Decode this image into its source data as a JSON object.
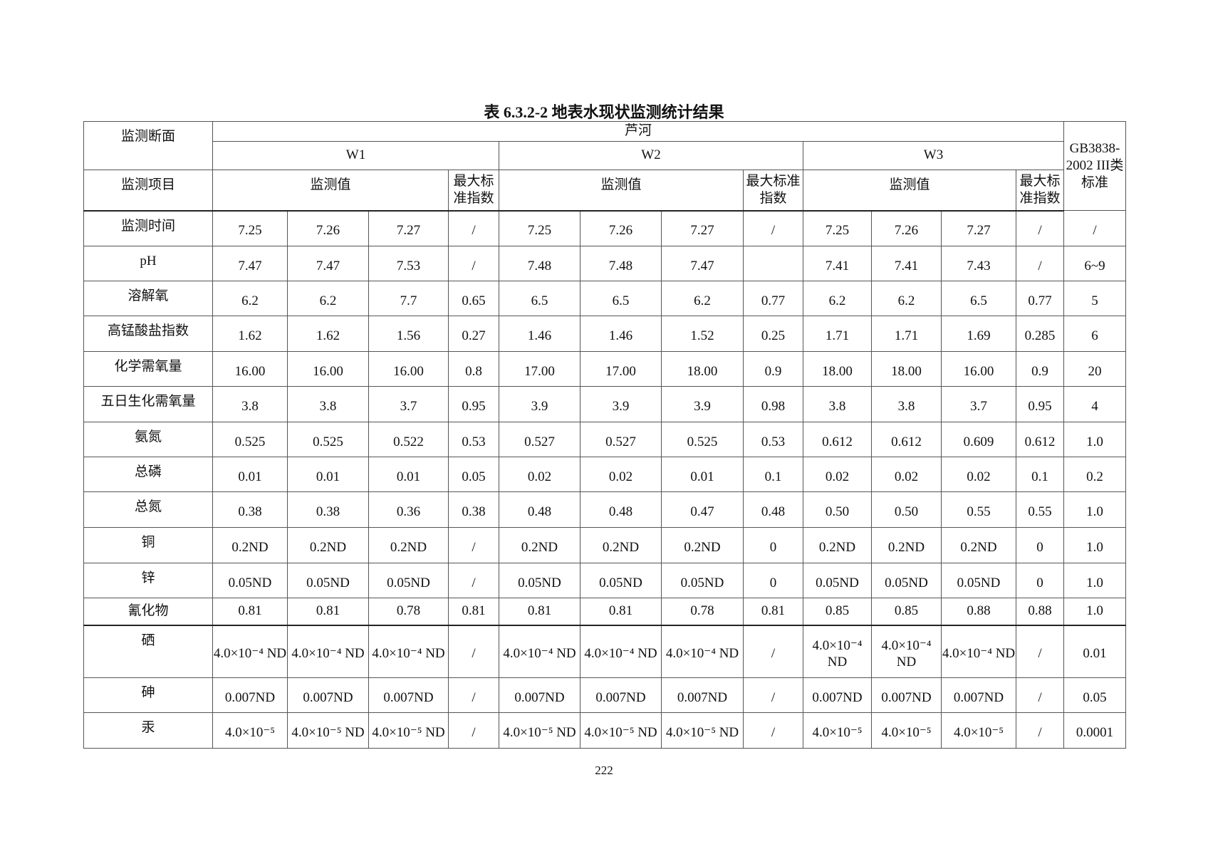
{
  "title": "表 6.3.2-2    地表水现状监测统计结果",
  "header": {
    "section_label": "监测断面",
    "river": "芦河",
    "sites": [
      "W1",
      "W2",
      "W3"
    ],
    "item_label": "监测项目",
    "value_label": "监测值",
    "max_index_label": "最大标准指数",
    "standard_label": "GB3838-2002 III类标准"
  },
  "rows": [
    {
      "item": "监测时间",
      "values": [
        "7.25",
        "7.26",
        "7.27",
        "/",
        "7.25",
        "7.26",
        "7.27",
        "/",
        "7.25",
        "7.26",
        "7.27",
        "/",
        "/"
      ]
    },
    {
      "item": "pH",
      "values": [
        "7.47",
        "7.47",
        "7.53",
        "/",
        "7.48",
        "7.48",
        "7.47",
        "",
        "7.41",
        "7.41",
        "7.43",
        "/",
        "6~9"
      ]
    },
    {
      "item": "溶解氧",
      "values": [
        "6.2",
        "6.2",
        "7.7",
        "0.65",
        "6.5",
        "6.5",
        "6.2",
        "0.77",
        "6.2",
        "6.2",
        "6.5",
        "0.77",
        "5"
      ]
    },
    {
      "item": "高锰酸盐指数",
      "values": [
        "1.62",
        "1.62",
        "1.56",
        "0.27",
        "1.46",
        "1.46",
        "1.52",
        "0.25",
        "1.71",
        "1.71",
        "1.69",
        "0.285",
        "6"
      ]
    },
    {
      "item": "化学需氧量",
      "values": [
        "16.00",
        "16.00",
        "16.00",
        "0.8",
        "17.00",
        "17.00",
        "18.00",
        "0.9",
        "18.00",
        "18.00",
        "16.00",
        "0.9",
        "20"
      ]
    },
    {
      "item": "五日生化需氧量",
      "values": [
        "3.8",
        "3.8",
        "3.7",
        "0.95",
        "3.9",
        "3.9",
        "3.9",
        "0.98",
        "3.8",
        "3.8",
        "3.7",
        "0.95",
        "4"
      ]
    },
    {
      "item": "氨氮",
      "values": [
        "0.525",
        "0.525",
        "0.522",
        "0.53",
        "0.527",
        "0.527",
        "0.525",
        "0.53",
        "0.612",
        "0.612",
        "0.609",
        "0.612",
        "1.0"
      ]
    },
    {
      "item": "总磷",
      "values": [
        "0.01",
        "0.01",
        "0.01",
        "0.05",
        "0.02",
        "0.02",
        "0.01",
        "0.1",
        "0.02",
        "0.02",
        "0.02",
        "0.1",
        "0.2"
      ]
    },
    {
      "item": "总氮",
      "values": [
        "0.38",
        "0.38",
        "0.36",
        "0.38",
        "0.48",
        "0.48",
        "0.47",
        "0.48",
        "0.50",
        "0.50",
        "0.55",
        "0.55",
        "1.0"
      ]
    },
    {
      "item": "铜",
      "values": [
        "0.2ND",
        "0.2ND",
        "0.2ND",
        "/",
        "0.2ND",
        "0.2ND",
        "0.2ND",
        "0",
        "0.2ND",
        "0.2ND",
        "0.2ND",
        "0",
        "1.0"
      ]
    },
    {
      "item": "锌",
      "values": [
        "0.05ND",
        "0.05ND",
        "0.05ND",
        "/",
        "0.05ND",
        "0.05ND",
        "0.05ND",
        "0",
        "0.05ND",
        "0.05ND",
        "0.05ND",
        "0",
        "1.0"
      ]
    },
    {
      "item": "氰化物",
      "values": [
        "0.81",
        "0.81",
        "0.78",
        "0.81",
        "0.81",
        "0.81",
        "0.78",
        "0.81",
        "0.85",
        "0.85",
        "0.88",
        "0.88",
        "1.0"
      ]
    },
    {
      "item": "硒",
      "values": [
        "4.0×10⁻⁴ ND",
        "4.0×10⁻⁴ ND",
        "4.0×10⁻⁴ ND",
        "/",
        "4.0×10⁻⁴ ND",
        "4.0×10⁻⁴ ND",
        "4.0×10⁻⁴ ND",
        "/",
        "4.0×10⁻⁴ ND",
        "4.0×10⁻⁴ ND",
        "4.0×10⁻⁴ ND",
        "/",
        "0.01"
      ]
    },
    {
      "item": "砷",
      "values": [
        "0.007ND",
        "0.007ND",
        "0.007ND",
        "/",
        "0.007ND",
        "0.007ND",
        "0.007ND",
        "/",
        "0.007ND",
        "0.007ND",
        "0.007ND",
        "/",
        "0.05"
      ]
    },
    {
      "item": "汞",
      "values": [
        "4.0×10⁻⁵",
        "4.0×10⁻⁵ ND",
        "4.0×10⁻⁵ ND",
        "/",
        "4.0×10⁻⁵ ND",
        "4.0×10⁻⁵ ND",
        "4.0×10⁻⁵ ND",
        "/",
        "4.0×10⁻⁵",
        "4.0×10⁻⁵",
        "4.0×10⁻⁵",
        "/",
        "0.0001"
      ]
    }
  ],
  "page_number": "222"
}
